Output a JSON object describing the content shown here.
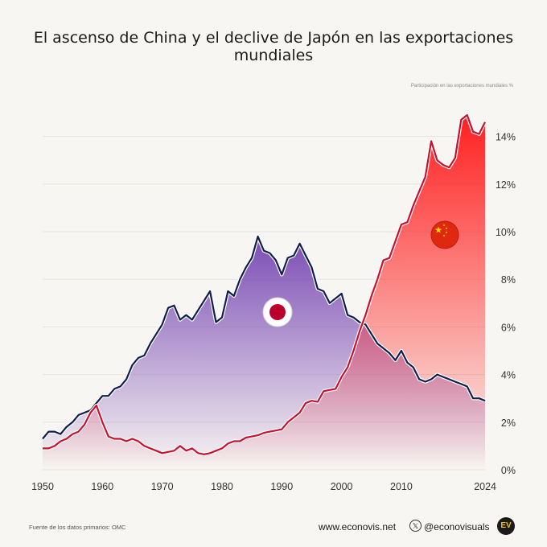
{
  "header": {
    "title": "El ascenso de China y el declive de Japón en las exportaciones mundiales",
    "axis_note": "Participación en las exportaciones mundiales %"
  },
  "footer": {
    "source": "Fuente de los datos primarios: OMC",
    "site": "www.econovis.net",
    "x_icon": "x-logo-icon",
    "x_glyph": "𝕏",
    "handle": "@econovisuals",
    "logo_text": "EV"
  },
  "colors": {
    "japan_line": "#0f1e4d",
    "japan_fill": "#7b4cb5",
    "china_line": "#c8102e",
    "china_fill": "#ff2020",
    "grid": "#e6e3de",
    "background": "#f8f6f2"
  },
  "chart_data": {
    "type": "area",
    "title": "El ascenso de China y el declive de Japón en las exportaciones mundiales",
    "ylabel": "Participación en las exportaciones mundiales %",
    "xlim": [
      1950,
      2024
    ],
    "ylim": [
      0,
      15
    ],
    "x_ticks": [
      1950,
      1960,
      1970,
      1980,
      1990,
      2000,
      2010,
      2024
    ],
    "y_ticks": [
      0,
      2,
      4,
      6,
      8,
      10,
      12,
      14
    ],
    "y_tick_labels": [
      "0%",
      "2%",
      "4%",
      "6%",
      "8%",
      "10%",
      "12%",
      "14%"
    ],
    "grid": true,
    "x": [
      1950,
      1951,
      1952,
      1953,
      1954,
      1955,
      1956,
      1957,
      1958,
      1959,
      1960,
      1961,
      1962,
      1963,
      1964,
      1965,
      1966,
      1967,
      1968,
      1969,
      1970,
      1971,
      1972,
      1973,
      1974,
      1975,
      1976,
      1977,
      1978,
      1979,
      1980,
      1981,
      1982,
      1983,
      1984,
      1985,
      1986,
      1987,
      1988,
      1989,
      1990,
      1991,
      1992,
      1993,
      1994,
      1995,
      1996,
      1997,
      1998,
      1999,
      2000,
      2001,
      2002,
      2003,
      2004,
      2005,
      2006,
      2007,
      2008,
      2009,
      2010,
      2011,
      2012,
      2013,
      2014,
      2015,
      2016,
      2017,
      2018,
      2019,
      2020,
      2021,
      2022,
      2023,
      2024
    ],
    "series": [
      {
        "name": "Japón",
        "icon": "japan-flag-icon",
        "values": [
          1.3,
          1.6,
          1.6,
          1.5,
          1.8,
          2.0,
          2.3,
          2.4,
          2.5,
          2.8,
          3.1,
          3.1,
          3.4,
          3.5,
          3.8,
          4.4,
          4.7,
          4.8,
          5.3,
          5.7,
          6.1,
          6.8,
          6.9,
          6.3,
          6.5,
          6.3,
          6.7,
          7.1,
          7.5,
          6.2,
          6.4,
          7.5,
          7.3,
          8.0,
          8.5,
          8.9,
          9.8,
          9.2,
          9.1,
          8.8,
          8.2,
          8.9,
          9.0,
          9.5,
          9.0,
          8.5,
          7.6,
          7.5,
          7.0,
          7.2,
          7.4,
          6.5,
          6.4,
          6.2,
          6.1,
          5.7,
          5.3,
          5.1,
          4.9,
          4.6,
          5.0,
          4.5,
          4.3,
          3.8,
          3.7,
          3.8,
          4.0,
          3.9,
          3.8,
          3.7,
          3.6,
          3.5,
          3.0,
          3.0,
          2.9
        ]
      },
      {
        "name": "China",
        "icon": "china-flag-icon",
        "values": [
          0.9,
          0.9,
          1.0,
          1.2,
          1.3,
          1.5,
          1.6,
          1.9,
          2.4,
          2.7,
          2.0,
          1.4,
          1.3,
          1.3,
          1.2,
          1.3,
          1.2,
          1.0,
          0.9,
          0.8,
          0.7,
          0.75,
          0.8,
          1.0,
          0.8,
          0.9,
          0.7,
          0.65,
          0.7,
          0.8,
          0.9,
          1.1,
          1.2,
          1.2,
          1.35,
          1.4,
          1.45,
          1.55,
          1.6,
          1.65,
          1.7,
          2.0,
          2.2,
          2.4,
          2.8,
          2.9,
          2.85,
          3.3,
          3.35,
          3.4,
          3.9,
          4.3,
          5.0,
          5.8,
          6.5,
          7.3,
          8.0,
          8.8,
          8.9,
          9.6,
          10.3,
          10.4,
          11.1,
          11.7,
          12.3,
          13.8,
          13.0,
          12.8,
          12.7,
          13.1,
          14.7,
          14.9,
          14.2,
          14.1,
          14.6
        ]
      }
    ]
  }
}
